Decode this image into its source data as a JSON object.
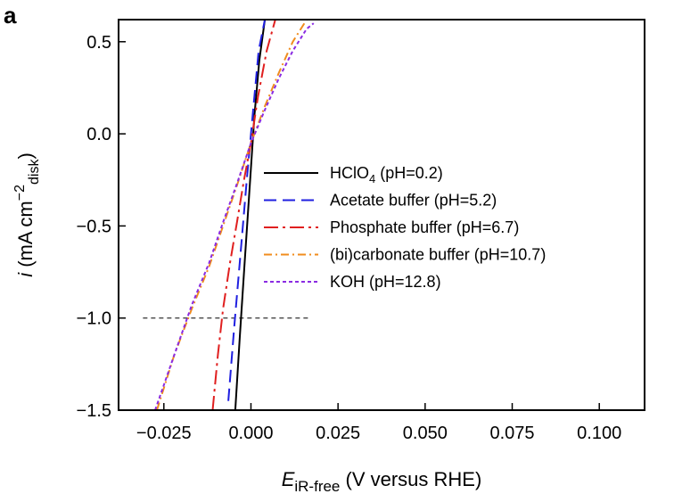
{
  "panel_label": "a",
  "chart_data": {
    "type": "line",
    "title": "",
    "xlabel": {
      "symbol": "E",
      "subscript": "iR-free",
      "rest": " (V versus RHE)"
    },
    "ylabel": {
      "symbol": "i",
      "unit_open": " (mA cm",
      "sup": "−2",
      "sub": "disk",
      "unit_close": ")"
    },
    "xlim": [
      -0.038,
      0.113
    ],
    "ylim": [
      -1.5,
      0.62
    ],
    "xticks": [
      {
        "value": -0.025,
        "label": "−0.025"
      },
      {
        "value": 0.0,
        "label": "0.000"
      },
      {
        "value": 0.025,
        "label": "0.025"
      },
      {
        "value": 0.05,
        "label": "0.050"
      },
      {
        "value": 0.075,
        "label": "0.075"
      },
      {
        "value": 0.1,
        "label": "0.100"
      }
    ],
    "yticks": [
      {
        "value": 0.5,
        "label": "0.5"
      },
      {
        "value": 0.0,
        "label": "0.0"
      },
      {
        "value": -0.5,
        "label": "−0.5"
      },
      {
        "value": -1.0,
        "label": "−1.0"
      },
      {
        "value": -1.5,
        "label": "−1.5"
      }
    ],
    "reference_line": {
      "y": -1.0,
      "x_from": -0.031,
      "x_to": 0.017,
      "style": "dashed"
    },
    "legend_placement": "center",
    "series": [
      {
        "name_main": "HClO",
        "name_sub": "4",
        "name_rest": " (pH=0.2)",
        "color": "#000000",
        "dash": "none",
        "x": [
          -0.0045,
          -0.0032,
          -0.0018,
          -0.0004,
          0.001,
          0.0024,
          0.004
        ],
        "y": [
          -1.5,
          -1.1,
          -0.7,
          -0.3,
          0.1,
          0.4,
          0.62
        ]
      },
      {
        "name_main": "Acetate buffer",
        "name_sub": "",
        "name_rest": " (pH=5.2)",
        "color": "#1f1fe0",
        "dash": "14,7",
        "x": [
          -0.0065,
          -0.0048,
          -0.003,
          -0.0012,
          0.0005,
          0.0022,
          0.004
        ],
        "y": [
          -1.45,
          -1.05,
          -0.65,
          -0.25,
          0.1,
          0.45,
          0.62
        ]
      },
      {
        "name_main": "Phosphate buffer",
        "name_sub": "",
        "name_rest": " (pH=6.7)",
        "color": "#e01f1f",
        "dash": "16,5,3,5",
        "x": [
          -0.011,
          -0.0095,
          -0.008,
          -0.006,
          -0.004,
          -0.002,
          0.0,
          0.002,
          0.0045,
          0.007
        ],
        "y": [
          -1.5,
          -1.2,
          -0.95,
          -0.7,
          -0.48,
          -0.25,
          -0.05,
          0.2,
          0.45,
          0.62
        ]
      },
      {
        "name_main": "(bi)carbonate buffer",
        "name_sub": "",
        "name_rest": " (pH=10.7)",
        "color": "#f08c1e",
        "dash": "9,4,2,4",
        "x": [
          -0.027,
          -0.022,
          -0.017,
          -0.012,
          -0.008,
          -0.004,
          0.0,
          0.004,
          0.008,
          0.012,
          0.016
        ],
        "y": [
          -1.5,
          -1.2,
          -0.95,
          -0.72,
          -0.5,
          -0.28,
          -0.05,
          0.15,
          0.33,
          0.5,
          0.62
        ]
      },
      {
        "name_main": "KOH",
        "name_sub": "",
        "name_rest": " (pH=12.8)",
        "color": "#8a2be2",
        "dash": "4,3",
        "x": [
          -0.0275,
          -0.022,
          -0.017,
          -0.012,
          -0.008,
          -0.004,
          0.0,
          0.004,
          0.008,
          0.012,
          0.016,
          0.018
        ],
        "y": [
          -1.5,
          -1.2,
          -0.93,
          -0.7,
          -0.48,
          -0.27,
          -0.05,
          0.13,
          0.3,
          0.45,
          0.57,
          0.6
        ]
      }
    ]
  }
}
